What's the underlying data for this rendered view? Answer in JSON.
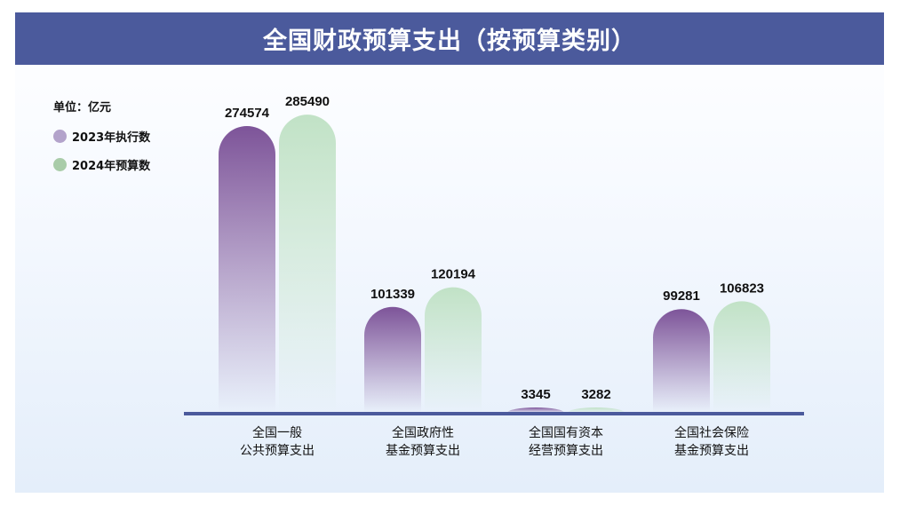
{
  "title": "全国财政预算支出（按预算类别）",
  "chart_data": {
    "type": "bar",
    "title": "全国财政预算支出（按预算类别）",
    "unit_label": "单位：亿元",
    "categories": [
      "全国一般\n公共预算支出",
      "全国政府性\n基金预算支出",
      "全国国有资本\n经营预算支出",
      "全国社会保险\n基金预算支出"
    ],
    "series": [
      {
        "name": "2023年执行数",
        "color": "#7d5499",
        "legend_color": "#b3a3cb",
        "values": [
          274574,
          101339,
          3345,
          99281
        ]
      },
      {
        "name": "2024年预算数",
        "color": "#c1e2c6",
        "legend_color": "#a9cca9",
        "values": [
          285490,
          120194,
          3282,
          106823
        ]
      }
    ],
    "ylim": [
      0,
      300000
    ],
    "grid": false,
    "legend_placement": "top-left",
    "axis_color": "#4b5a9c"
  }
}
